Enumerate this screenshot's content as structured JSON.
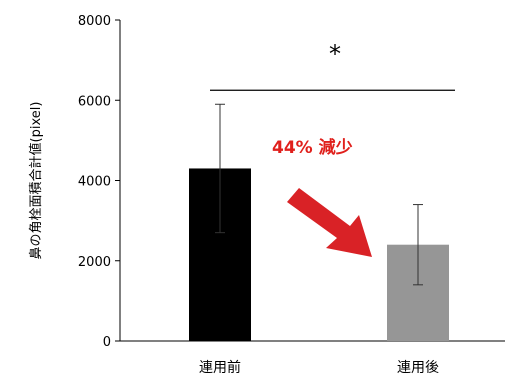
{
  "chart_data": {
    "type": "bar",
    "ylabel": "鼻の角栓面積合計値(pixel)",
    "ylim": [
      0,
      8000
    ],
    "yticks": [
      0,
      2000,
      4000,
      6000,
      8000
    ],
    "tick_labels": [
      "0",
      "2000",
      "4000",
      "6000",
      "8000"
    ],
    "categories": [
      "連用前",
      "連用後"
    ],
    "values": [
      4300,
      2400
    ],
    "errors": [
      1600,
      1000
    ],
    "colors": [
      "#000000",
      "#969696"
    ],
    "significance": {
      "label": "*",
      "y": 6250
    },
    "annotation": {
      "text": "44% 減少",
      "color": "#e0201c"
    },
    "arrow_color": "#d92226"
  }
}
